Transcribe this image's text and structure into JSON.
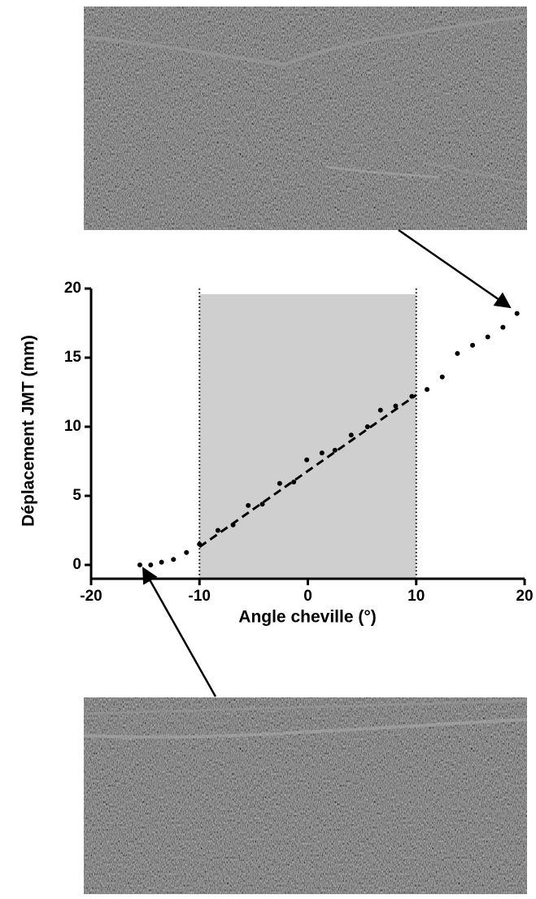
{
  "chart_data": {
    "type": "scatter",
    "xlabel": "Angle  cheville  (°)",
    "ylabel": "Déplacement JMT (mm)",
    "x": [
      -15.5,
      -14.5,
      -13.5,
      -12.4,
      -11.2,
      -10,
      -8.3,
      -6.9,
      -5.5,
      -4.2,
      -2.6,
      -1.3,
      -0.1,
      1.3,
      2.5,
      4.0,
      5.5,
      6.7,
      8.1,
      9.6,
      11.0,
      12.4,
      13.8,
      15.2,
      16.6,
      18.0,
      19.3
    ],
    "values": [
      0,
      0,
      0.2,
      0.4,
      0.9,
      1.5,
      2.5,
      2.9,
      4.3,
      4.4,
      5.9,
      6.0,
      7.6,
      8.1,
      8.3,
      9.4,
      10.0,
      11.2,
      11.5,
      12.2,
      12.7,
      13.6,
      15.3,
      15.9,
      16.5,
      17.2,
      18.2
    ],
    "color": "#000000",
    "fit": {
      "x": [
        -10,
        10
      ],
      "values": [
        1.3,
        12.3
      ]
    },
    "shaded_range": [
      -10,
      10
    ],
    "xlim": [
      -20,
      20
    ],
    "xticks": [
      -20,
      -10,
      0,
      10,
      20
    ],
    "ylim": [
      -1,
      20
    ],
    "yticks": [
      0,
      5,
      10,
      15,
      20
    ]
  }
}
